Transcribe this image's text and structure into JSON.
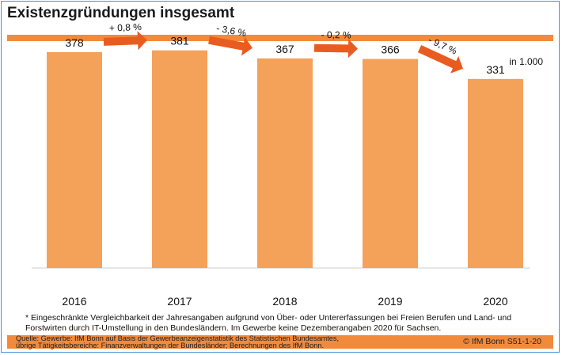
{
  "title": "Existenzgründungen insgesamt",
  "unit_label": "in 1.000",
  "chart_data": {
    "type": "bar",
    "title": "Existenzgründungen insgesamt",
    "ylabel": "in 1.000",
    "categories": [
      "2016",
      "2017",
      "2018",
      "2019",
      "2020"
    ],
    "values": [
      378,
      381,
      367,
      366,
      331
    ],
    "ylim": [
      0,
      400
    ],
    "changes": [
      "+ 0,8 %",
      "- 3,6 %",
      "- 0,2 %",
      "- 9,7 %"
    ],
    "bar_color": "#f4a15a",
    "arrow_color": "#e95c21"
  },
  "footnote": "* Eingeschränkte Vergleichbarkeit der Jahresangaben aufgrund von Über- oder Untererfassungen bei Freien Berufen und Land- und Forstwirten durch IT-Umstellung in den Bundesländern. Im Gewerbe keine Dezemberangaben 2020 für Sachsen.",
  "source_line1": "Quelle: Gewerbe: IfM Bonn auf Basis der Gewerbeanzeigenstatistik des Statistischen Bundesamtes,",
  "source_line2": "übrige Tätigkeitsbereiche: Finanzverwaltungen der Bundesländer; Berechnungen des IfM Bonn.",
  "credit": "© IfM Bonn   S51-1-20"
}
